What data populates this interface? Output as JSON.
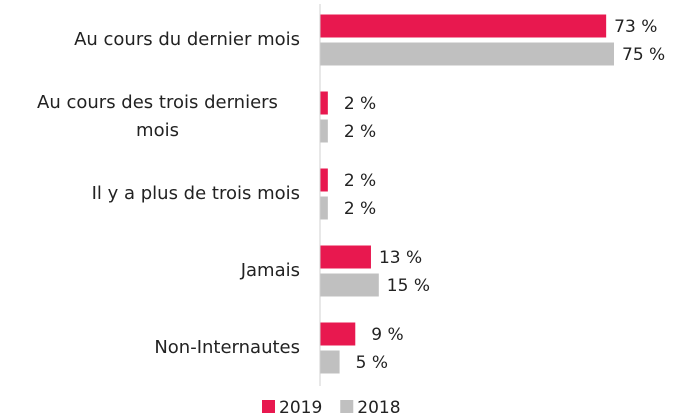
{
  "chart_data": {
    "type": "bar",
    "orientation": "horizontal",
    "categories": [
      "Au cours du dernier mois",
      "Au cours des trois derniers mois",
      "Il y a plus de trois mois",
      "Jamais",
      "Non-Internautes"
    ],
    "series": [
      {
        "name": "2019",
        "color": "#e8184f",
        "values": [
          73,
          2,
          2,
          13,
          9
        ],
        "value_labels": [
          "73 %",
          "2 %",
          "2 %",
          "13 %",
          "9 %"
        ]
      },
      {
        "name": "2018",
        "color": "#c0c0c0",
        "values": [
          75,
          2,
          2,
          15,
          5
        ],
        "value_labels": [
          "75 %",
          "2 %",
          "2 %",
          "15 %",
          "5 %"
        ]
      }
    ],
    "legend": "bottom"
  }
}
